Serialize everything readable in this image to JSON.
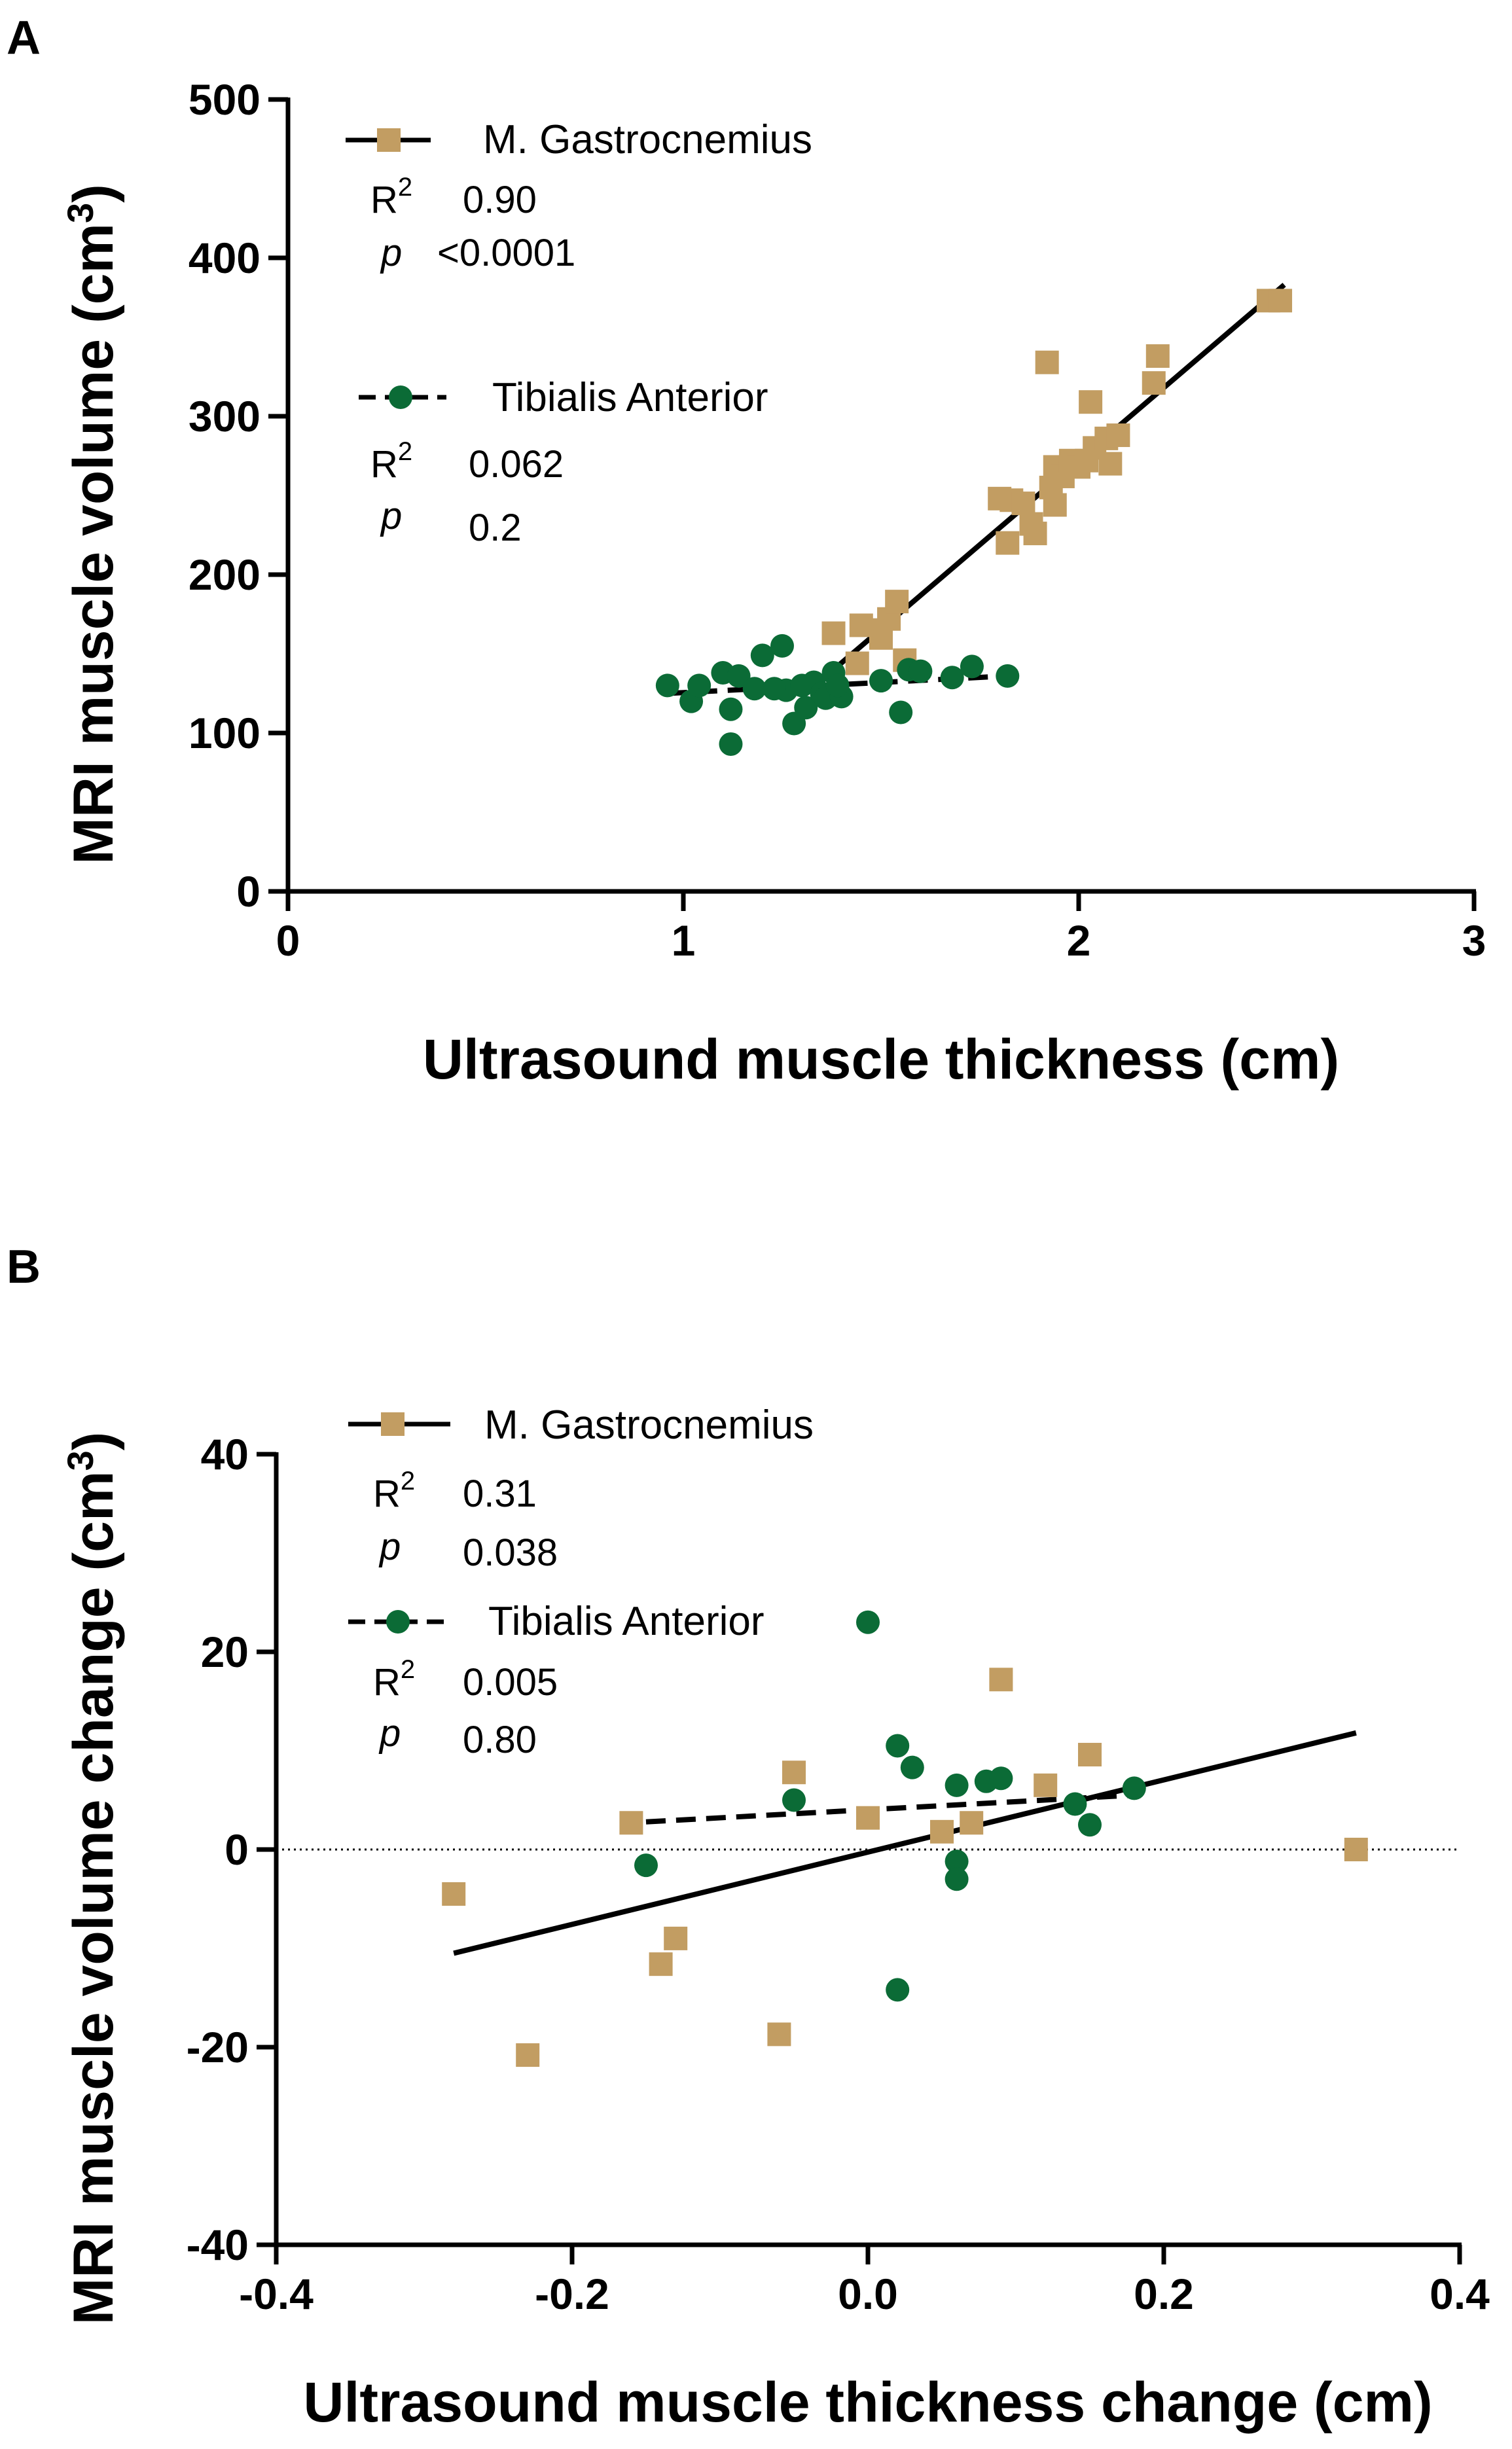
{
  "colors": {
    "gastrocnemius": "#C29D62",
    "tibialis": "#0B6B36",
    "axis": "#000000"
  },
  "chart_data": [
    {
      "panel": "A",
      "type": "scatter",
      "xlabel": "Ultrasound muscle thickness (cm)",
      "ylabel": "MRI muscle volume (cm³)",
      "ylabel_main": "MRI muscle volume (cm",
      "ylabel_sup": "3",
      "ylabel_end": ")",
      "xlim": [
        0,
        3
      ],
      "ylim": [
        0,
        500
      ],
      "xticks": [
        0,
        1,
        2,
        3
      ],
      "yticks": [
        0,
        100,
        200,
        300,
        400,
        500
      ],
      "zero_line": false,
      "series": [
        {
          "name": "M. Gastrocnemius",
          "marker": "square",
          "color": "#C29D62",
          "fit_style": "solid",
          "r2_label": "R",
          "r2_sup": "2",
          "r2": "0.90",
          "p_label": "p",
          "p": "<0.0001",
          "fit": [
            [
              1.38,
              140
            ],
            [
              2.52,
              383
            ]
          ],
          "points": [
            [
              1.38,
              163
            ],
            [
              1.45,
              168
            ],
            [
              1.5,
              165
            ],
            [
              1.52,
              172
            ],
            [
              1.54,
              183
            ],
            [
              1.5,
              160
            ],
            [
              1.56,
              146
            ],
            [
              1.44,
              144
            ],
            [
              1.8,
              248
            ],
            [
              1.83,
              247
            ],
            [
              1.86,
              245
            ],
            [
              1.82,
              220
            ],
            [
              1.88,
              232
            ],
            [
              1.89,
              226
            ],
            [
              1.93,
              255
            ],
            [
              1.94,
              268
            ],
            [
              1.96,
              262
            ],
            [
              1.98,
              272
            ],
            [
              2.0,
              268
            ],
            [
              2.02,
              272
            ],
            [
              2.04,
              280
            ],
            [
              2.07,
              286
            ],
            [
              2.08,
              270
            ],
            [
              2.1,
              288
            ],
            [
              2.03,
              309
            ],
            [
              1.92,
              334
            ],
            [
              2.2,
              338
            ],
            [
              2.19,
              321
            ],
            [
              2.48,
              373
            ],
            [
              2.51,
              373
            ],
            [
              1.94,
              244
            ]
          ]
        },
        {
          "name": "Tibialis Anterior",
          "marker": "circle",
          "color": "#0B6B36",
          "fit_style": "dashed",
          "r2_label": "R",
          "r2_sup": "2",
          "r2": "0.062",
          "p_label": "p",
          "p": "0.2",
          "fit": [
            [
              0.96,
              125
            ],
            [
              1.82,
              136
            ]
          ],
          "points": [
            [
              0.96,
              130
            ],
            [
              1.02,
              120
            ],
            [
              1.04,
              130
            ],
            [
              1.1,
              138
            ],
            [
              1.12,
              115
            ],
            [
              1.12,
              93
            ],
            [
              1.14,
              136
            ],
            [
              1.18,
              128
            ],
            [
              1.2,
              149
            ],
            [
              1.25,
              155
            ],
            [
              1.26,
              127
            ],
            [
              1.28,
              106
            ],
            [
              1.3,
              130
            ],
            [
              1.31,
              116
            ],
            [
              1.33,
              132
            ],
            [
              1.35,
              125
            ],
            [
              1.36,
              122
            ],
            [
              1.38,
              138
            ],
            [
              1.4,
              123
            ],
            [
              1.5,
              133
            ],
            [
              1.55,
              113
            ],
            [
              1.57,
              140
            ],
            [
              1.6,
              139
            ],
            [
              1.68,
              135
            ],
            [
              1.73,
              142
            ],
            [
              1.82,
              136
            ],
            [
              1.39,
              130
            ],
            [
              1.23,
              128
            ]
          ]
        }
      ]
    },
    {
      "panel": "B",
      "type": "scatter",
      "xlabel": "Ultrasound muscle thickness change (cm)",
      "ylabel": "MRI muscle volume change (cm³)",
      "ylabel_main": "MRI muscle volume change (cm",
      "ylabel_sup": "3",
      "ylabel_end": ")",
      "xlim": [
        -0.4,
        0.4
      ],
      "ylim": [
        -40,
        40
      ],
      "xticks": [
        -0.4,
        -0.2,
        0.0,
        0.2,
        0.4
      ],
      "xtick_labels": [
        "-0.4",
        "-0.2",
        "0.0",
        "0.2",
        "0.4"
      ],
      "yticks": [
        -40,
        -20,
        0,
        20,
        40
      ],
      "zero_line": true,
      "series": [
        {
          "name": "M. Gastrocnemius",
          "marker": "square",
          "color": "#C29D62",
          "fit_style": "solid",
          "r2_label": "R",
          "r2_sup": "2",
          "r2": "0.31",
          "p_label": "p",
          "p": "0.038",
          "fit": [
            [
              -0.28,
              -10.5
            ],
            [
              0.33,
              11.8
            ]
          ],
          "points": [
            [
              -0.28,
              -4.5
            ],
            [
              -0.23,
              -20.8
            ],
            [
              -0.16,
              2.7
            ],
            [
              -0.14,
              -11.6
            ],
            [
              -0.13,
              -9.0
            ],
            [
              -0.06,
              -18.7
            ],
            [
              -0.05,
              7.8
            ],
            [
              0.0,
              3.2
            ],
            [
              0.05,
              1.8
            ],
            [
              0.07,
              2.7
            ],
            [
              0.09,
              17.2
            ],
            [
              0.12,
              6.5
            ],
            [
              0.15,
              9.6
            ],
            [
              0.33,
              0.0
            ]
          ]
        },
        {
          "name": "Tibialis Anterior",
          "marker": "circle",
          "color": "#0B6B36",
          "fit_style": "dashed",
          "r2_label": "R",
          "r2_sup": "2",
          "r2": "0.005",
          "p_label": "p",
          "p": "0.80",
          "fit": [
            [
              -0.15,
              2.8
            ],
            [
              0.18,
              5.5
            ]
          ],
          "points": [
            [
              -0.15,
              -1.6
            ],
            [
              -0.05,
              5.0
            ],
            [
              0.0,
              23.0
            ],
            [
              0.02,
              10.5
            ],
            [
              0.02,
              -14.2
            ],
            [
              0.03,
              8.3
            ],
            [
              0.06,
              6.5
            ],
            [
              0.06,
              -1.2
            ],
            [
              0.06,
              -3.0
            ],
            [
              0.08,
              6.9
            ],
            [
              0.09,
              7.2
            ],
            [
              0.14,
              4.6
            ],
            [
              0.15,
              2.5
            ],
            [
              0.18,
              6.2
            ]
          ]
        }
      ]
    }
  ]
}
